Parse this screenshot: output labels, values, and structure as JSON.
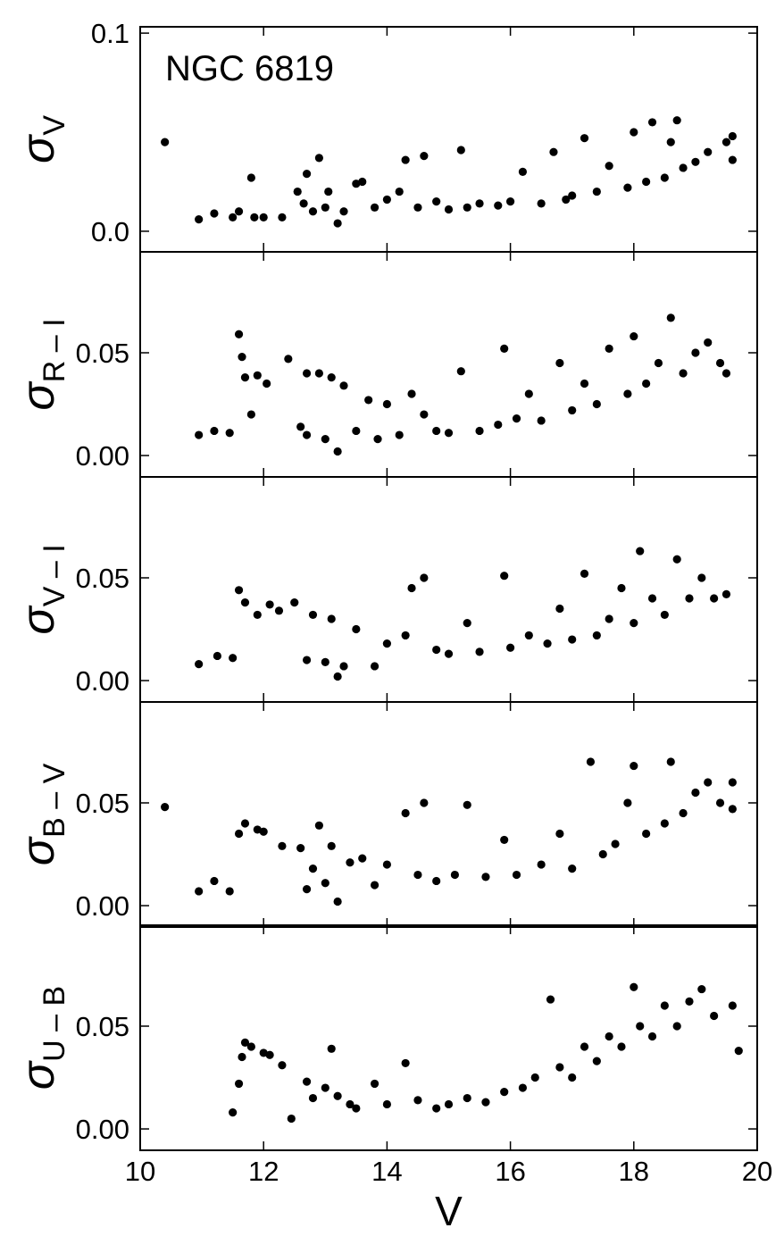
{
  "chart_data": [
    {
      "type": "scatter",
      "annotation": "NGC 6819",
      "y_label": "σ",
      "y_label_subscript": "V",
      "color": "#000000",
      "xlim": [
        10,
        20
      ],
      "xticks": [
        10,
        12,
        14,
        16,
        18,
        20
      ],
      "ylim": [
        -0.0104,
        0.1032
      ],
      "yticks": [
        {
          "value": 0,
          "label": "0.0"
        },
        0.1
      ],
      "x": [
        10.4,
        10.95,
        11.2,
        11.5,
        11.6,
        11.8,
        11.85,
        12.0,
        12.3,
        12.55,
        12.65,
        12.7,
        12.8,
        12.9,
        13.0,
        13.05,
        13.2,
        13.3,
        13.5,
        13.6,
        13.8,
        14.0,
        14.2,
        14.3,
        14.5,
        14.6,
        14.8,
        15.0,
        15.2,
        15.3,
        15.5,
        15.8,
        16.0,
        16.2,
        16.5,
        16.7,
        16.9,
        17.0,
        17.2,
        17.4,
        17.6,
        17.9,
        18.0,
        18.2,
        18.3,
        18.5,
        18.6,
        18.8,
        19.0,
        19.2,
        19.5,
        19.6,
        19.6,
        18.7
      ],
      "values": [
        0.045,
        0.006,
        0.009,
        0.007,
        0.01,
        0.027,
        0.007,
        0.007,
        0.007,
        0.02,
        0.014,
        0.029,
        0.01,
        0.037,
        0.012,
        0.02,
        0.004,
        0.01,
        0.024,
        0.025,
        0.012,
        0.016,
        0.02,
        0.036,
        0.012,
        0.038,
        0.015,
        0.011,
        0.041,
        0.012,
        0.014,
        0.013,
        0.015,
        0.03,
        0.014,
        0.04,
        0.016,
        0.018,
        0.047,
        0.02,
        0.033,
        0.022,
        0.05,
        0.025,
        0.055,
        0.027,
        0.045,
        0.032,
        0.035,
        0.04,
        0.045,
        0.048,
        0.036,
        0.056
      ]
    },
    {
      "type": "scatter",
      "y_label": "σ",
      "y_label_subscript": "R – I",
      "color": "#000000",
      "xlim": [
        10,
        20
      ],
      "xticks": [
        10,
        12,
        14,
        16,
        18,
        20
      ],
      "ylim": [
        -0.0104,
        0.0991
      ],
      "yticks": [
        {
          "value": 0,
          "label": "0.00"
        },
        0.05
      ],
      "x": [
        10.95,
        11.2,
        11.45,
        11.6,
        11.65,
        11.7,
        11.8,
        11.9,
        12.05,
        12.4,
        12.6,
        12.7,
        12.7,
        12.9,
        13.0,
        13.1,
        13.2,
        13.3,
        13.5,
        13.7,
        13.85,
        14.0,
        14.2,
        14.4,
        14.6,
        14.8,
        15.0,
        15.2,
        15.5,
        15.8,
        15.9,
        16.1,
        16.3,
        16.5,
        16.8,
        17.0,
        17.2,
        17.4,
        17.6,
        17.9,
        18.0,
        18.2,
        18.4,
        18.6,
        18.8,
        19.0,
        19.2,
        19.4,
        19.5
      ],
      "values": [
        0.01,
        0.012,
        0.011,
        0.059,
        0.048,
        0.038,
        0.02,
        0.039,
        0.035,
        0.047,
        0.014,
        0.04,
        0.01,
        0.04,
        0.008,
        0.038,
        0.002,
        0.034,
        0.012,
        0.027,
        0.008,
        0.025,
        0.01,
        0.03,
        0.02,
        0.012,
        0.011,
        0.041,
        0.012,
        0.015,
        0.052,
        0.018,
        0.03,
        0.017,
        0.045,
        0.022,
        0.035,
        0.025,
        0.052,
        0.03,
        0.058,
        0.035,
        0.045,
        0.067,
        0.04,
        0.05,
        0.055,
        0.045,
        0.04
      ]
    },
    {
      "type": "scatter",
      "y_label": "σ",
      "y_label_subscript": "V – I",
      "color": "#000000",
      "xlim": [
        10,
        20
      ],
      "xticks": [
        10,
        12,
        14,
        16,
        18,
        20
      ],
      "ylim": [
        -0.0104,
        0.0991
      ],
      "yticks": [
        {
          "value": 0,
          "label": "0.00"
        },
        0.05
      ],
      "x": [
        10.95,
        11.25,
        11.5,
        11.6,
        11.7,
        11.9,
        12.1,
        12.25,
        12.5,
        12.7,
        12.8,
        13.0,
        13.1,
        13.2,
        13.3,
        13.5,
        13.8,
        14.0,
        14.3,
        14.4,
        14.6,
        14.8,
        15.0,
        15.3,
        15.5,
        15.9,
        16.0,
        16.3,
        16.6,
        16.8,
        17.0,
        17.2,
        17.4,
        17.6,
        17.8,
        18.0,
        18.1,
        18.3,
        18.5,
        18.7,
        18.9,
        19.1,
        19.3,
        19.5
      ],
      "values": [
        0.008,
        0.012,
        0.011,
        0.044,
        0.038,
        0.032,
        0.037,
        0.034,
        0.038,
        0.01,
        0.032,
        0.009,
        0.03,
        0.002,
        0.007,
        0.025,
        0.007,
        0.018,
        0.022,
        0.045,
        0.05,
        0.015,
        0.013,
        0.028,
        0.014,
        0.051,
        0.016,
        0.022,
        0.018,
        0.035,
        0.02,
        0.052,
        0.022,
        0.03,
        0.045,
        0.028,
        0.063,
        0.04,
        0.032,
        0.059,
        0.04,
        0.05,
        0.04,
        0.042
      ]
    },
    {
      "type": "scatter",
      "y_label": "σ",
      "y_label_subscript": "B – V",
      "color": "#000000",
      "xlim": [
        10,
        20
      ],
      "xticks": [
        10,
        12,
        14,
        16,
        18,
        20
      ],
      "ylim": [
        -0.0104,
        0.0991
      ],
      "yticks": [
        {
          "value": 0,
          "label": "0.00"
        },
        0.05
      ],
      "x": [
        10.4,
        10.95,
        11.2,
        11.45,
        11.6,
        11.7,
        11.9,
        12.0,
        12.3,
        12.6,
        12.7,
        12.8,
        12.9,
        13.0,
        13.1,
        13.2,
        13.4,
        13.6,
        13.8,
        14.0,
        14.3,
        14.5,
        14.6,
        14.8,
        15.1,
        15.3,
        15.6,
        15.9,
        16.1,
        16.5,
        16.8,
        17.0,
        17.3,
        17.5,
        17.7,
        17.9,
        18.0,
        18.2,
        18.5,
        18.6,
        18.8,
        19.0,
        19.2,
        19.4,
        19.6,
        19.6
      ],
      "values": [
        0.048,
        0.007,
        0.012,
        0.007,
        0.035,
        0.04,
        0.037,
        0.036,
        0.029,
        0.028,
        0.008,
        0.018,
        0.039,
        0.011,
        0.029,
        0.002,
        0.021,
        0.023,
        0.01,
        0.02,
        0.045,
        0.015,
        0.05,
        0.012,
        0.015,
        0.049,
        0.014,
        0.032,
        0.015,
        0.02,
        0.035,
        0.018,
        0.07,
        0.025,
        0.03,
        0.05,
        0.068,
        0.035,
        0.04,
        0.07,
        0.045,
        0.055,
        0.06,
        0.05,
        0.047,
        0.06
      ]
    },
    {
      "type": "scatter",
      "y_label": "σ",
      "y_label_subscript": "U – B",
      "x_label": "V",
      "color": "#000000",
      "xlim": [
        10,
        20
      ],
      "xticks": [
        10,
        12,
        14,
        16,
        18,
        20
      ],
      "ylim": [
        -0.0104,
        0.0991
      ],
      "yticks": [
        {
          "value": 0,
          "label": "0.00"
        },
        0.05
      ],
      "x": [
        11.5,
        11.6,
        11.65,
        11.7,
        11.8,
        12.0,
        12.1,
        12.3,
        12.45,
        12.7,
        12.8,
        13.0,
        13.1,
        13.2,
        13.4,
        13.5,
        13.8,
        14.0,
        14.3,
        14.5,
        14.8,
        15.0,
        15.3,
        15.6,
        15.9,
        16.2,
        16.4,
        16.65,
        16.8,
        17.0,
        17.2,
        17.4,
        17.6,
        17.8,
        18.0,
        18.1,
        18.3,
        18.5,
        18.7,
        18.9,
        19.1,
        19.3,
        19.6,
        19.7
      ],
      "values": [
        0.008,
        0.022,
        0.035,
        0.042,
        0.04,
        0.037,
        0.036,
        0.031,
        0.005,
        0.023,
        0.015,
        0.02,
        0.039,
        0.016,
        0.012,
        0.01,
        0.022,
        0.012,
        0.032,
        0.014,
        0.01,
        0.012,
        0.015,
        0.013,
        0.018,
        0.02,
        0.025,
        0.063,
        0.03,
        0.025,
        0.04,
        0.033,
        0.045,
        0.04,
        0.069,
        0.05,
        0.045,
        0.06,
        0.05,
        0.062,
        0.068,
        0.055,
        0.06,
        0.038
      ]
    }
  ]
}
